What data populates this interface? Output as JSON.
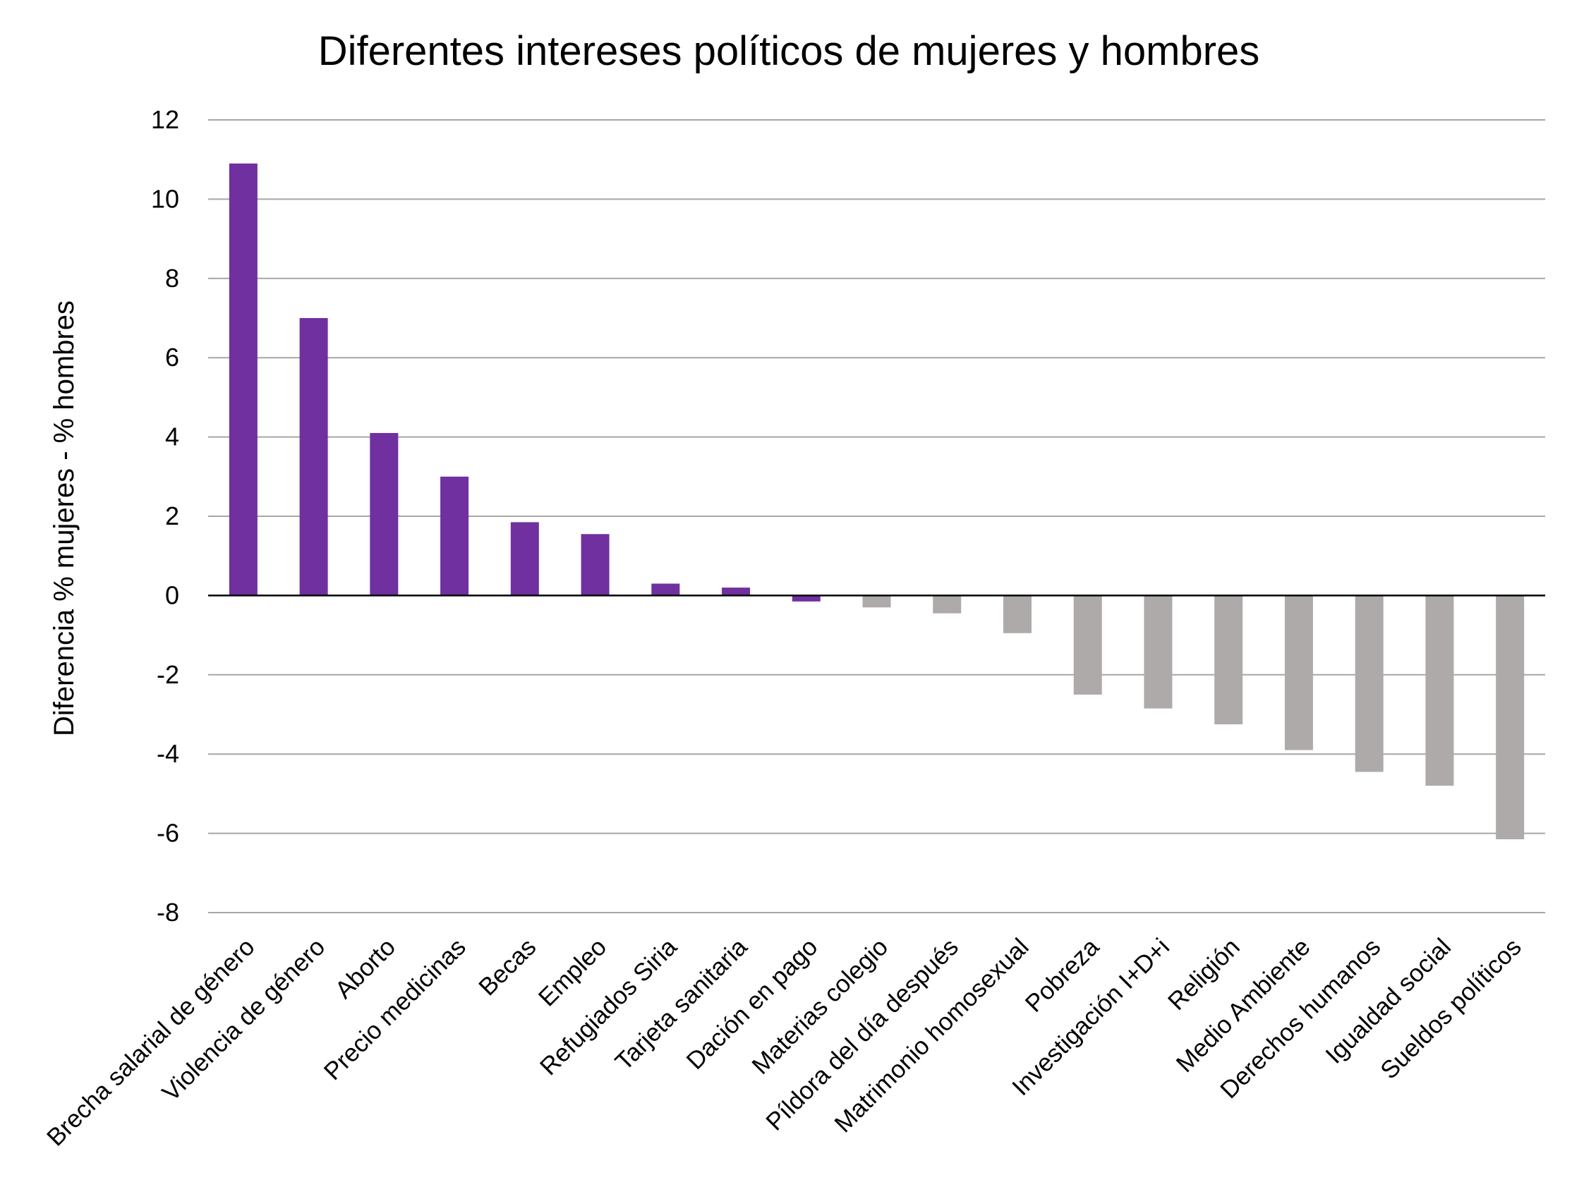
{
  "chart_data": {
    "type": "bar",
    "title": "Diferentes intereses políticos de mujeres y hombres",
    "xlabel": "",
    "ylabel": "Diferencia % mujeres  - % hombres",
    "ylim": [
      -8,
      12
    ],
    "yticks": [
      12,
      10,
      8,
      6,
      4,
      2,
      0,
      -2,
      -4,
      -6,
      -8
    ],
    "grid": true,
    "categories": [
      "Brecha salarial de género",
      "Violencia de género",
      "Aborto",
      "Precio medicinas",
      "Becas",
      "Empleo",
      "Refugiados Siria",
      "Tarjeta sanitaria",
      "Dación en pago",
      "Materias colegio",
      "Píldora del día después",
      "Matrimonio homosexual",
      "Pobreza",
      "Investigación I+D+i",
      "Religión",
      "Medio Ambiente",
      "Derechos humanos",
      "Igualdad social",
      "Sueldos políticos"
    ],
    "values": [
      10.9,
      7.0,
      4.1,
      3.0,
      1.85,
      1.55,
      0.3,
      0.2,
      -0.15,
      -0.3,
      -0.45,
      -0.95,
      -2.5,
      -2.85,
      -3.25,
      -3.9,
      -4.45,
      -4.8,
      -6.15
    ],
    "bar_colors": [
      "#7030a0",
      "#7030a0",
      "#7030a0",
      "#7030a0",
      "#7030a0",
      "#7030a0",
      "#7030a0",
      "#7030a0",
      "#7030a0",
      "#aeaaaa",
      "#aeaaaa",
      "#aeaaaa",
      "#aeaaaa",
      "#aeaaaa",
      "#aeaaaa",
      "#aeaaaa",
      "#aeaaaa",
      "#aeaaaa",
      "#aeaaaa"
    ],
    "colors": {
      "women": "#7030a0",
      "men": "#aeaaaa",
      "grid": "#a6a6a6",
      "zero_line": "#000000"
    }
  }
}
